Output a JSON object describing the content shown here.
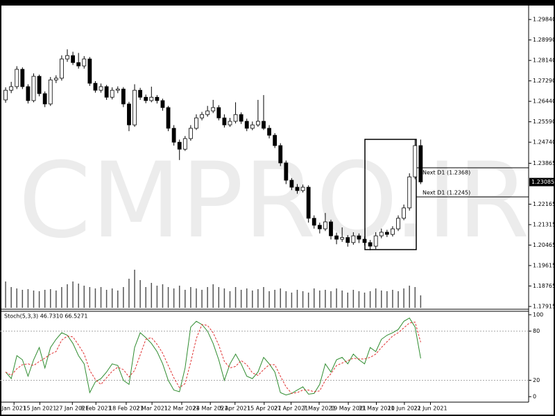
{
  "chart_data": [
    {
      "type": "candlestick",
      "watermark": "CMPRO.IR",
      "xlim": [
        -1,
        93.25
      ],
      "ylim": [
        1.178,
        1.3042
      ],
      "yticks": [
        {
          "value": 1.2984,
          "label": "1.29840"
        },
        {
          "value": 1.2899,
          "label": "1.28990"
        },
        {
          "value": 1.2814,
          "label": "1.28140"
        },
        {
          "value": 1.2729,
          "label": "1.27290"
        },
        {
          "value": 1.2644,
          "label": "1.26440"
        },
        {
          "value": 1.2559,
          "label": "1.25590"
        },
        {
          "value": 1.2474,
          "label": "1.24740"
        },
        1.23865,
        1.22165,
        1.21315,
        1.20465,
        1.19615,
        1.18765,
        1.17915
      ],
      "current_price": 1.23085,
      "annotations": [
        "Next D1 (1.2368)",
        "Next D1 (1.2245)"
      ],
      "candles": [
        [
          1.265,
          1.2702,
          1.2638,
          1.269
        ],
        [
          1.269,
          1.2725,
          1.2678,
          1.2705
        ],
        [
          1.2705,
          1.279,
          1.2695,
          1.2777
        ],
        [
          1.2777,
          1.2785,
          1.2695,
          1.2705
        ],
        [
          1.2705,
          1.2715,
          1.2635,
          1.2647
        ],
        [
          1.2647,
          1.276,
          1.264,
          1.2748
        ],
        [
          1.2748,
          1.2755,
          1.2665,
          1.2676
        ],
        [
          1.2676,
          1.2685,
          1.262,
          1.2633
        ],
        [
          1.2633,
          1.2745,
          1.2625,
          1.2733
        ],
        [
          1.2733,
          1.2752,
          1.272,
          1.274
        ],
        [
          1.274,
          1.2835,
          1.273,
          1.282
        ],
        [
          1.282,
          1.286,
          1.2808,
          1.2834
        ],
        [
          1.2834,
          1.285,
          1.2795,
          1.2805
        ],
        [
          1.2805,
          1.2845,
          1.278,
          1.2791
        ],
        [
          1.2791,
          1.2832,
          1.278,
          1.282
        ],
        [
          1.282,
          1.2828,
          1.2708,
          1.2719
        ],
        [
          1.2719,
          1.2728,
          1.268,
          1.269
        ],
        [
          1.269,
          1.2718,
          1.268,
          1.2705
        ],
        [
          1.2705,
          1.2712,
          1.265,
          1.2661
        ],
        [
          1.2661,
          1.2702,
          1.2652,
          1.269
        ],
        [
          1.269,
          1.2706,
          1.2678,
          1.2695
        ],
        [
          1.2695,
          1.2703,
          1.262,
          1.2633
        ],
        [
          1.2633,
          1.2642,
          1.252,
          1.2546
        ],
        [
          1.2546,
          1.2715,
          1.2538,
          1.269
        ],
        [
          1.269,
          1.27,
          1.265,
          1.2661
        ],
        [
          1.2661,
          1.2672,
          1.2636,
          1.2647
        ],
        [
          1.2647,
          1.2705,
          1.264,
          1.2661
        ],
        [
          1.2661,
          1.267,
          1.2635,
          1.2647
        ],
        [
          1.2647,
          1.2655,
          1.2605,
          1.2618
        ],
        [
          1.2618,
          1.2625,
          1.252,
          1.2532
        ],
        [
          1.2532,
          1.2545,
          1.246,
          1.2474
        ],
        [
          1.2474,
          1.2485,
          1.24,
          1.2445
        ],
        [
          1.2445,
          1.25,
          1.2438,
          1.2489
        ],
        [
          1.2489,
          1.2545,
          1.248,
          1.2532
        ],
        [
          1.2532,
          1.259,
          1.2525,
          1.2575
        ],
        [
          1.2575,
          1.26,
          1.2565,
          1.2589
        ],
        [
          1.2589,
          1.2625,
          1.258,
          1.2604
        ],
        [
          1.2604,
          1.265,
          1.2595,
          1.2618
        ],
        [
          1.2618,
          1.2628,
          1.2565,
          1.2575
        ],
        [
          1.2575,
          1.259,
          1.2535,
          1.2546
        ],
        [
          1.2546,
          1.2575,
          1.2538,
          1.2561
        ],
        [
          1.2561,
          1.264,
          1.2552,
          1.2589
        ],
        [
          1.2589,
          1.2598,
          1.255,
          1.2561
        ],
        [
          1.2561,
          1.2572,
          1.252,
          1.2532
        ],
        [
          1.2532,
          1.256,
          1.2524,
          1.2546
        ],
        [
          1.2546,
          1.265,
          1.2538,
          1.2561
        ],
        [
          1.2561,
          1.267,
          1.2525,
          1.2532
        ],
        [
          1.2532,
          1.2545,
          1.249,
          1.2503
        ],
        [
          1.2503,
          1.2512,
          1.245,
          1.246
        ],
        [
          1.246,
          1.247,
          1.2375,
          1.2388
        ],
        [
          1.2388,
          1.2398,
          1.23,
          1.2316
        ],
        [
          1.2316,
          1.2325,
          1.2275,
          1.2287
        ],
        [
          1.2287,
          1.23,
          1.226,
          1.2273
        ],
        [
          1.2273,
          1.2298,
          1.2265,
          1.2287
        ],
        [
          1.2287,
          1.2295,
          1.214,
          1.2158
        ],
        [
          1.2158,
          1.217,
          1.2115,
          1.2129
        ],
        [
          1.2129,
          1.214,
          1.2095,
          1.2114
        ],
        [
          1.2114,
          1.218,
          1.2105,
          1.2143
        ],
        [
          1.2143,
          1.2152,
          1.207,
          1.2085
        ],
        [
          1.2085,
          1.2098,
          1.205,
          1.2071
        ],
        [
          1.2071,
          1.212,
          1.206,
          1.2078
        ],
        [
          1.2078,
          1.2088,
          1.204,
          1.2057
        ],
        [
          1.2057,
          1.21,
          1.2048,
          1.2085
        ],
        [
          1.2085,
          1.2095,
          1.2055,
          1.2071
        ],
        [
          1.2071,
          1.2082,
          1.2045,
          1.2057
        ],
        [
          1.2057,
          1.2068,
          1.2025,
          1.2042
        ],
        [
          1.2042,
          1.21,
          1.203,
          1.2085
        ],
        [
          1.2085,
          1.2115,
          1.2075,
          1.21
        ],
        [
          1.21,
          1.211,
          1.208,
          1.2091
        ],
        [
          1.2091,
          1.2125,
          1.2082,
          1.2114
        ],
        [
          1.2114,
          1.217,
          1.2105,
          1.2158
        ],
        [
          1.2158,
          1.2215,
          1.215,
          1.2201
        ],
        [
          1.2201,
          1.2345,
          1.219,
          1.233
        ],
        [
          1.233,
          1.2485,
          1.232,
          1.246
        ],
        [
          1.246,
          1.2485,
          1.23,
          1.2309
        ]
      ],
      "volume": [
        38,
        30,
        28,
        26,
        27,
        25,
        24,
        26,
        27,
        25,
        30,
        34,
        38,
        35,
        32,
        30,
        28,
        30,
        26,
        28,
        25,
        30,
        42,
        55,
        40,
        30,
        36,
        32,
        34,
        30,
        28,
        32,
        26,
        30,
        28,
        26,
        30,
        34,
        30,
        28,
        24,
        30,
        26,
        28,
        25,
        27,
        30,
        24,
        26,
        28,
        24,
        22,
        26,
        24,
        22,
        28,
        25,
        26,
        24,
        28,
        25,
        22,
        26,
        24,
        22,
        24,
        28,
        25,
        24,
        26,
        24,
        28,
        32,
        30,
        18
      ]
    },
    {
      "type": "line",
      "title": "Stoch(5,3,3) 46.7310 66.5271",
      "xlim": [
        -1,
        93.25
      ],
      "ylim": [
        -6.7,
        104.2
      ],
      "yticks": [
        100,
        80,
        20,
        0
      ],
      "levels": [
        80,
        20
      ],
      "xticks": [
        {
          "value": 1.5,
          "label": "Jan 2021"
        },
        {
          "value": 6.1,
          "label": "15 Jan 2021"
        },
        {
          "value": 11.9,
          "label": "27 Jan 2021"
        },
        {
          "value": 16.1,
          "label": "8 Feb 2021"
        },
        {
          "value": 21.5,
          "label": "18 Feb 2021"
        },
        {
          "value": 26.1,
          "label": "2 Mar 2021"
        },
        {
          "value": 31.4,
          "label": "12 Mar 2021"
        },
        {
          "value": 36.5,
          "label": "24 Mar 2021"
        },
        {
          "value": 40.9,
          "label": "5 Apr 2021"
        },
        {
          "value": 46.1,
          "label": "15 Apr 2021"
        },
        {
          "value": 50.9,
          "label": "27 Apr 2021"
        },
        {
          "value": 55.9,
          "label": "7 May 2021"
        },
        {
          "value": 61.1,
          "label": "19 May 2021"
        },
        {
          "value": 66.1,
          "label": "31 May 2021"
        },
        {
          "value": 71.1,
          "label": "10 Jun 2021"
        },
        {
          "value": 75.75,
          "label": "22 Jun 2021"
        }
      ],
      "series": [
        {
          "color": "#2e8b2e",
          "dash": false,
          "values": [
            30,
            22,
            50,
            45,
            25,
            45,
            60,
            35,
            60,
            70,
            78,
            75,
            65,
            50,
            40,
            5,
            18,
            22,
            30,
            40,
            38,
            20,
            15,
            60,
            78,
            72,
            65,
            55,
            40,
            20,
            8,
            6,
            35,
            85,
            92,
            88,
            80,
            65,
            45,
            20,
            40,
            52,
            40,
            25,
            22,
            30,
            48,
            40,
            30,
            5,
            2,
            4,
            8,
            12,
            3,
            4,
            15,
            40,
            30,
            45,
            48,
            40,
            52,
            45,
            40,
            60,
            55,
            70,
            75,
            78,
            82,
            92,
            96,
            85,
            46.731
          ]
        },
        {
          "color": "#e03030",
          "dash": true,
          "values": [
            30,
            26,
            34,
            39,
            40,
            38,
            43,
            47,
            52,
            55,
            69,
            74,
            73,
            63,
            52,
            32,
            21,
            15,
            23,
            31,
            36,
            33,
            24,
            32,
            51,
            70,
            72,
            64,
            53,
            38,
            23,
            11,
            16,
            42,
            71,
            88,
            87,
            78,
            63,
            43,
            35,
            37,
            44,
            39,
            29,
            26,
            33,
            39,
            39,
            25,
            12,
            4,
            5,
            8,
            8,
            6,
            7,
            20,
            28,
            38,
            41,
            44,
            47,
            46,
            46,
            48,
            52,
            60,
            67,
            74,
            78,
            84,
            90,
            91,
            66.5271
          ]
        }
      ]
    }
  ]
}
